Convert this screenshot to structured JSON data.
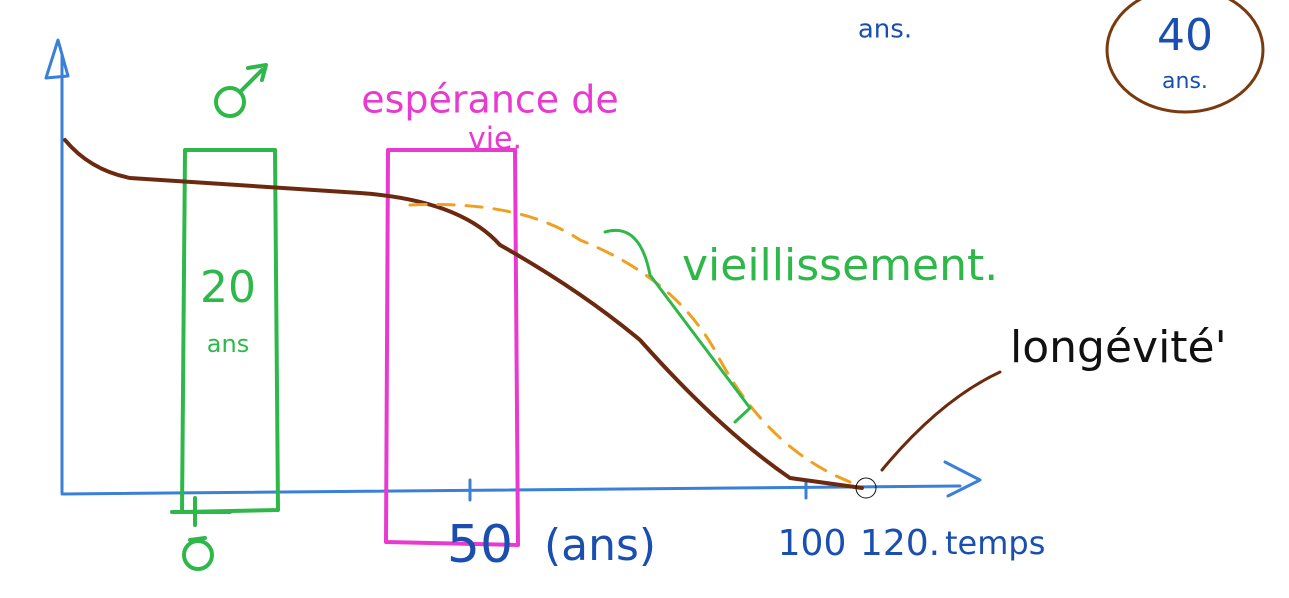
{
  "top_note": "ans.",
  "badge": {
    "value": "40",
    "unit": "ans."
  },
  "labels": {
    "life_expectancy_1": "espérance de",
    "life_expectancy_2": "vie.",
    "twenty": "20",
    "twenty_unit": "ans",
    "aging": "vieillissement.",
    "longevity": "longévité'"
  },
  "x_axis": {
    "fifty": "50",
    "unit": "(ans)",
    "hundred": "100",
    "one_twenty": "120.",
    "time": "temps"
  }
}
